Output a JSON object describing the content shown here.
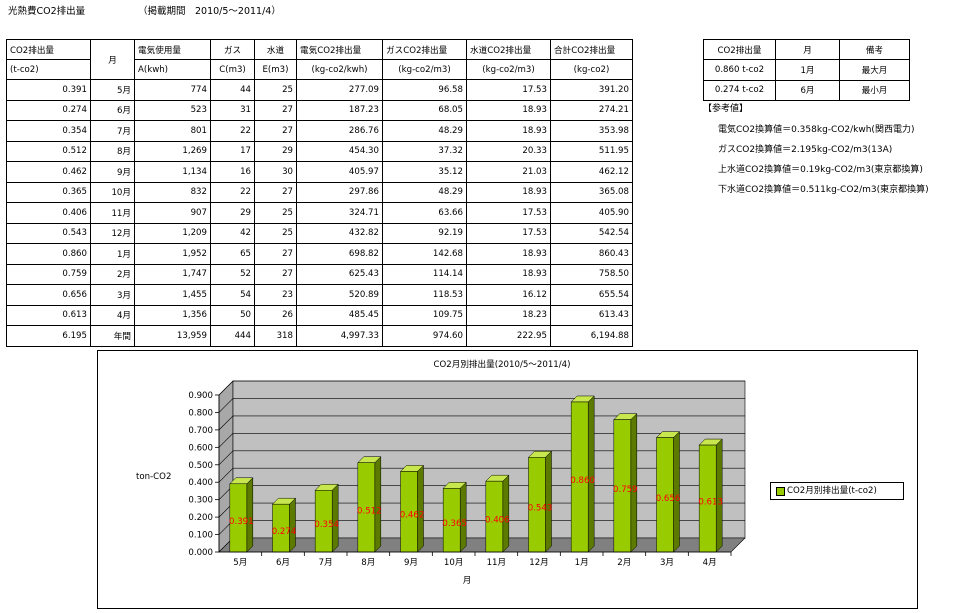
{
  "page": {
    "title": "光熱費CO2排出量",
    "period": "（掲載期間　2010/5～2011/4）"
  },
  "main_table": {
    "headers_top": [
      "CO2排出量",
      "月",
      "電気使用量",
      "ガス",
      "水道",
      "電気CO2排出量",
      "ガスCO2排出量",
      "水道CO2排出量",
      "合計CO2排出量"
    ],
    "headers_sub": [
      "(t-co2)",
      "",
      "A(kwh)",
      "C(m3)",
      "E(m3)",
      "(kg-co2/kwh)",
      "(kg-co2/m3)",
      "(kg-co2/m3)",
      "(kg-co2)"
    ],
    "rows": [
      [
        "0.391",
        "5月",
        "774",
        "44",
        "25",
        "277.09",
        "96.58",
        "17.53",
        "391.20"
      ],
      [
        "0.274",
        "6月",
        "523",
        "31",
        "27",
        "187.23",
        "68.05",
        "18.93",
        "274.21"
      ],
      [
        "0.354",
        "7月",
        "801",
        "22",
        "27",
        "286.76",
        "48.29",
        "18.93",
        "353.98"
      ],
      [
        "0.512",
        "8月",
        "1,269",
        "17",
        "29",
        "454.30",
        "37.32",
        "20.33",
        "511.95"
      ],
      [
        "0.462",
        "9月",
        "1,134",
        "16",
        "30",
        "405.97",
        "35.12",
        "21.03",
        "462.12"
      ],
      [
        "0.365",
        "10月",
        "832",
        "22",
        "27",
        "297.86",
        "48.29",
        "18.93",
        "365.08"
      ],
      [
        "0.406",
        "11月",
        "907",
        "29",
        "25",
        "324.71",
        "63.66",
        "17.53",
        "405.90"
      ],
      [
        "0.543",
        "12月",
        "1,209",
        "42",
        "25",
        "432.82",
        "92.19",
        "17.53",
        "542.54"
      ],
      [
        "0.860",
        "1月",
        "1,952",
        "65",
        "27",
        "698.82",
        "142.68",
        "18.93",
        "860.43"
      ],
      [
        "0.759",
        "2月",
        "1,747",
        "52",
        "27",
        "625.43",
        "114.14",
        "18.93",
        "758.50"
      ],
      [
        "0.656",
        "3月",
        "1,455",
        "54",
        "23",
        "520.89",
        "118.53",
        "16.12",
        "655.54"
      ],
      [
        "0.613",
        "4月",
        "1,356",
        "50",
        "26",
        "485.45",
        "109.75",
        "18.23",
        "613.43"
      ]
    ],
    "total_row": [
      "6.195",
      "年間",
      "13,959",
      "444",
      "318",
      "4,997.33",
      "974.60",
      "222.95",
      "6,194.88"
    ]
  },
  "summary_table": {
    "headers": [
      "CO2排出量",
      "月",
      "備考"
    ],
    "rows": [
      [
        "0.860 t-co2",
        "1月",
        "最大月"
      ],
      [
        "0.274 t-co2",
        "6月",
        "最小月"
      ]
    ]
  },
  "reference": {
    "title": "【参考値】",
    "lines": [
      "電気CO2換算値＝0.358kg-CO2/kwh(関西電力)",
      "ガスCO2換算値＝2.195kg-CO2/m3(13A)",
      "上水道CO2換算値＝0.19kg-CO2/m3(東京都換算)",
      "下水道CO2換算値＝0.511kg-CO2/m3(東京都換算)"
    ]
  },
  "chart_data": {
    "type": "bar",
    "title": "CO2月別排出量(2010/5～2011/4)",
    "xlabel": "月",
    "ylabel": "ton-CO2",
    "categories": [
      "5月",
      "6月",
      "7月",
      "8月",
      "9月",
      "10月",
      "11月",
      "12月",
      "1月",
      "2月",
      "3月",
      "4月"
    ],
    "series": [
      {
        "name": "CO2月別排出量(t-co2)",
        "values": [
          0.391,
          0.274,
          0.354,
          0.512,
          0.462,
          0.365,
          0.406,
          0.543,
          0.86,
          0.759,
          0.656,
          0.613
        ]
      }
    ],
    "data_labels": [
      "0.391",
      "0.274",
      "0.354",
      "0.512",
      "0.462",
      "0.365",
      "0.406",
      "0.543",
      "0.860",
      "0.759",
      "0.656",
      "0.613"
    ],
    "y_ticks": [
      "0.000",
      "0.100",
      "0.200",
      "0.300",
      "0.400",
      "0.500",
      "0.600",
      "0.700",
      "0.800",
      "0.900"
    ],
    "ylim": [
      0,
      0.9
    ],
    "grid": true,
    "legend_position": "right",
    "colors": {
      "bar_front": "#99cc00",
      "bar_side": "#5c7a00",
      "bar_top": "#c8e64d",
      "label": "#ff0000",
      "wall": "#c0c0c0",
      "floor": "#808080"
    }
  }
}
